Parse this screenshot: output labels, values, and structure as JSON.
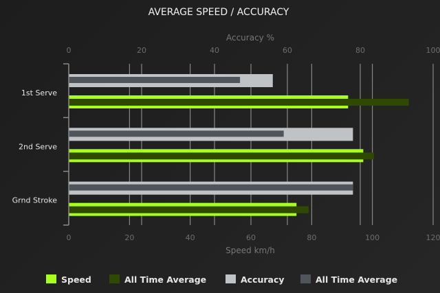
{
  "chart_data": {
    "type": "bar",
    "orientation": "horizontal",
    "title": "AVERAGE SPEED / ACCURACY",
    "categories": [
      "1st Serve",
      "2nd Serve",
      "Grnd Stroke"
    ],
    "speed_axis": {
      "label": "Speed km/h",
      "range": [
        0,
        120
      ],
      "ticks": [
        0,
        20,
        40,
        60,
        80,
        100,
        120
      ],
      "position": "bottom"
    },
    "accuracy_axis": {
      "label": "Accuracy %",
      "range": [
        0,
        100
      ],
      "ticks": [
        0,
        20,
        40,
        60,
        80,
        100
      ],
      "position": "top"
    },
    "grid": true,
    "legend_position": "bottom",
    "series": [
      {
        "name": "Speed",
        "axis": "speed",
        "color": "#a8ff1e",
        "values": [
          92,
          97,
          75
        ]
      },
      {
        "name": "All Time Average",
        "axis": "speed",
        "color": "#2f4a00",
        "values": [
          112,
          100.5,
          79
        ]
      },
      {
        "name": "Accuracy",
        "axis": "accuracy",
        "color": "#bfc3c6",
        "values": [
          56,
          78,
          78
        ]
      },
      {
        "name": "All Time Average",
        "axis": "accuracy",
        "color": "#50555c",
        "values": [
          47,
          59,
          78
        ]
      }
    ]
  }
}
